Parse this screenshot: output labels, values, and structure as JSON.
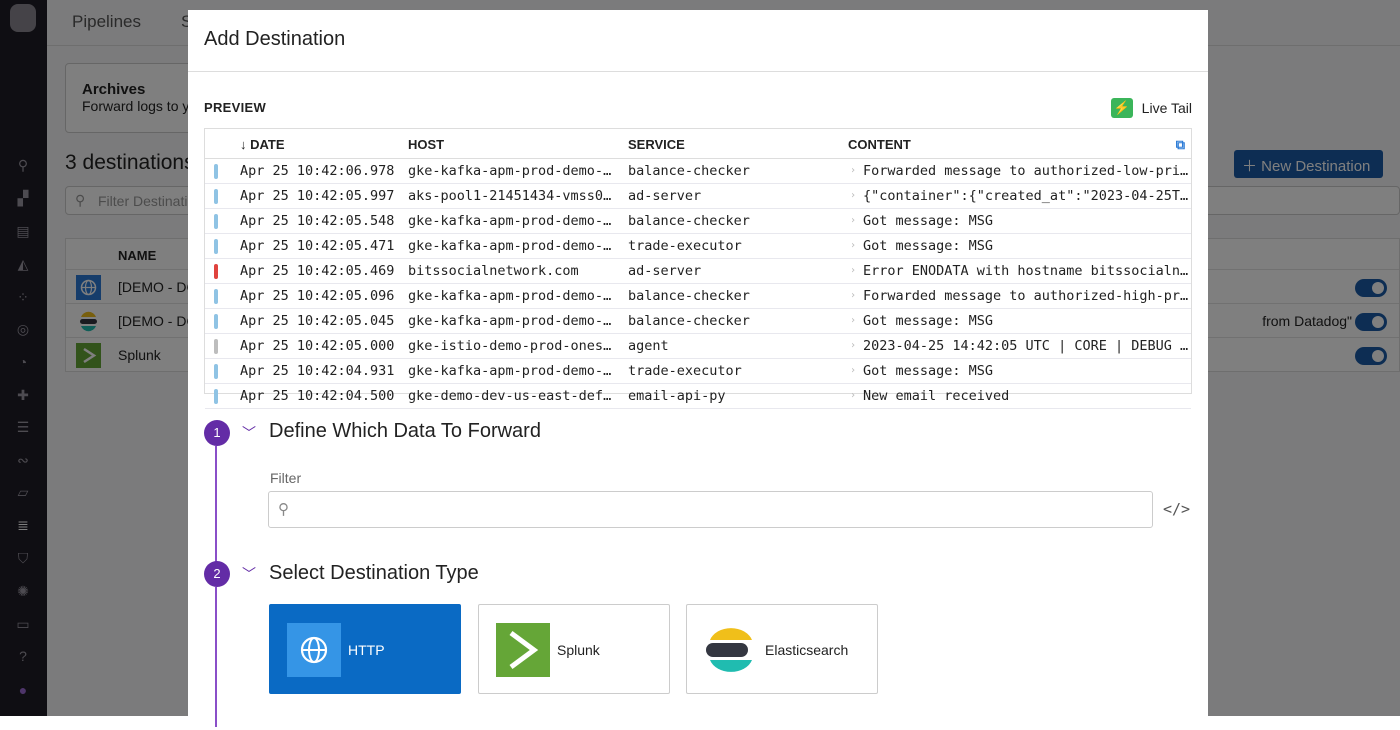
{
  "background": {
    "tabs": [
      "Pipelines",
      "S"
    ],
    "archives": {
      "title": "Archives",
      "description": "Forward logs to y"
    },
    "destinations_count": "3 destinations",
    "filter_placeholder": "Filter Destinati",
    "new_destination_label": "New Destination",
    "table_header": "NAME",
    "rows": [
      {
        "name": "[DEMO - DC",
        "type": "http",
        "extra": "",
        "enabled": true
      },
      {
        "name": "[DEMO - DC",
        "type": "elasticsearch",
        "extra": "from Datadog\"",
        "enabled": true
      },
      {
        "name": "Splunk",
        "type": "splunk",
        "extra": "",
        "enabled": true
      }
    ]
  },
  "modal": {
    "title": "Add Destination",
    "preview_label": "PREVIEW",
    "live_tail_label": "Live Tail",
    "columns": [
      "DATE",
      "HOST",
      "SERVICE",
      "CONTENT"
    ],
    "logs": [
      {
        "status": "info",
        "date": "Apr 25 10:42:06.978",
        "host": "gke-kafka-apm-prod-demo-…",
        "service": "balance-checker",
        "content": "Forwarded message to authorized-low-pri…"
      },
      {
        "status": "info",
        "date": "Apr 25 10:42:05.997",
        "host": "aks-pool1-21451434-vmss0…",
        "service": "ad-server",
        "content": "{\"container\":{\"created_at\":\"2023-04-25T…"
      },
      {
        "status": "info",
        "date": "Apr 25 10:42:05.548",
        "host": "gke-kafka-apm-prod-demo-…",
        "service": "balance-checker",
        "content": "Got message: MSG"
      },
      {
        "status": "info",
        "date": "Apr 25 10:42:05.471",
        "host": "gke-kafka-apm-prod-demo-…",
        "service": "trade-executor",
        "content": "Got message: MSG"
      },
      {
        "status": "error",
        "date": "Apr 25 10:42:05.469",
        "host": "bitssocialnetwork.com",
        "service": "ad-server",
        "content": "Error ENODATA with hostname bitssocialn…"
      },
      {
        "status": "info",
        "date": "Apr 25 10:42:05.096",
        "host": "gke-kafka-apm-prod-demo-…",
        "service": "balance-checker",
        "content": "Forwarded message to authorized-high-pr…"
      },
      {
        "status": "info",
        "date": "Apr 25 10:42:05.045",
        "host": "gke-kafka-apm-prod-demo-…",
        "service": "balance-checker",
        "content": "Got message: MSG"
      },
      {
        "status": "debug",
        "date": "Apr 25 10:42:05.000",
        "host": "gke-istio-demo-prod-ones…",
        "service": "agent",
        "content": "2023-04-25 14:42:05 UTC | CORE | DEBUG …"
      },
      {
        "status": "info",
        "date": "Apr 25 10:42:04.931",
        "host": "gke-kafka-apm-prod-demo-…",
        "service": "trade-executor",
        "content": "Got message: MSG"
      },
      {
        "status": "info",
        "date": "Apr 25 10:42:04.500",
        "host": "gke-demo-dev-us-east-def…",
        "service": "email-api-py",
        "content": "New email received"
      }
    ],
    "status_colors": {
      "info": "#8fc3e4",
      "error": "#e0433e",
      "debug": "#bdbdbd"
    },
    "step1": {
      "number": "1",
      "title": "Define Which Data To Forward",
      "filter_label": "Filter",
      "filter_value": "",
      "filter_placeholder": ""
    },
    "step2": {
      "number": "2",
      "title": "Select Destination Type",
      "options": [
        {
          "label": "HTTP",
          "icon": "globe-icon",
          "selected": true
        },
        {
          "label": "Splunk",
          "icon": "splunk-icon",
          "selected": false
        },
        {
          "label": "Elasticsearch",
          "icon": "elasticsearch-icon",
          "selected": false
        }
      ]
    },
    "accent": "#632ca6"
  }
}
